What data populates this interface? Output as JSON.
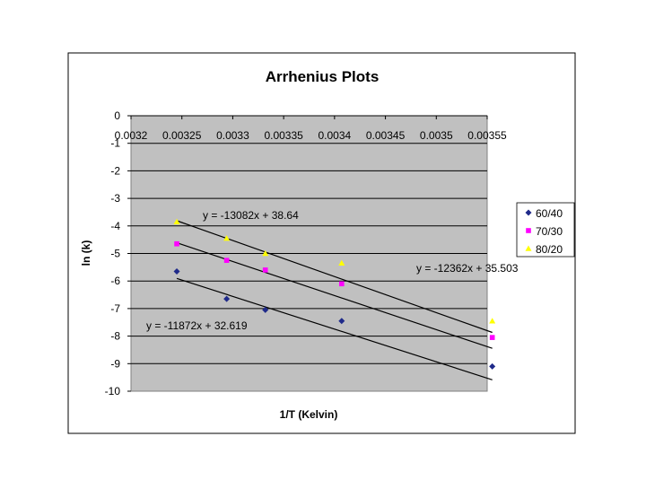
{
  "chart_data": {
    "type": "scatter",
    "title": "Arrhenius Plots",
    "xlabel": "1/T (Kelvin)",
    "ylabel": "ln (k)",
    "xlim": [
      0.0032,
      0.00355
    ],
    "ylim": [
      -10,
      0
    ],
    "x_ticks": [
      "0.0032",
      "0.00325",
      "0.0033",
      "0.00335",
      "0.0034",
      "0.00345",
      "0.0035",
      "0.00355"
    ],
    "y_ticks": [
      "0",
      "-1",
      "-2",
      "-3",
      "-4",
      "-5",
      "-6",
      "-7",
      "-8",
      "-9",
      "-10"
    ],
    "grid": "horizontal",
    "legend_position": "right",
    "series": [
      {
        "name": "60/40",
        "color": "#1f2a8a",
        "marker": "diamond",
        "points": [
          [
            0.003245,
            -5.65
          ],
          [
            0.003294,
            -6.65
          ],
          [
            0.003332,
            -7.05
          ],
          [
            0.003407,
            -7.45
          ],
          [
            0.003555,
            -9.1
          ]
        ],
        "trendline": {
          "slope": -11872,
          "intercept": 32.619,
          "label": "y = -11872x + 32.619"
        }
      },
      {
        "name": "70/30",
        "color": "#ff00ff",
        "marker": "square",
        "points": [
          [
            0.003245,
            -4.65
          ],
          [
            0.003294,
            -5.25
          ],
          [
            0.003332,
            -5.6
          ],
          [
            0.003407,
            -6.1
          ],
          [
            0.003555,
            -8.05
          ]
        ],
        "trendline": {
          "slope": -12362,
          "intercept": 35.503,
          "label": "y = -12362x + 35.503"
        }
      },
      {
        "name": "80/20",
        "color": "#ffff00",
        "marker": "triangle",
        "points": [
          [
            0.003245,
            -3.85
          ],
          [
            0.003294,
            -4.45
          ],
          [
            0.003332,
            -5.0
          ],
          [
            0.003407,
            -5.35
          ],
          [
            0.003555,
            -7.45
          ]
        ],
        "trendline": {
          "slope": -13082,
          "intercept": 38.64,
          "label": "y = -13082x + 38.64"
        }
      }
    ]
  }
}
